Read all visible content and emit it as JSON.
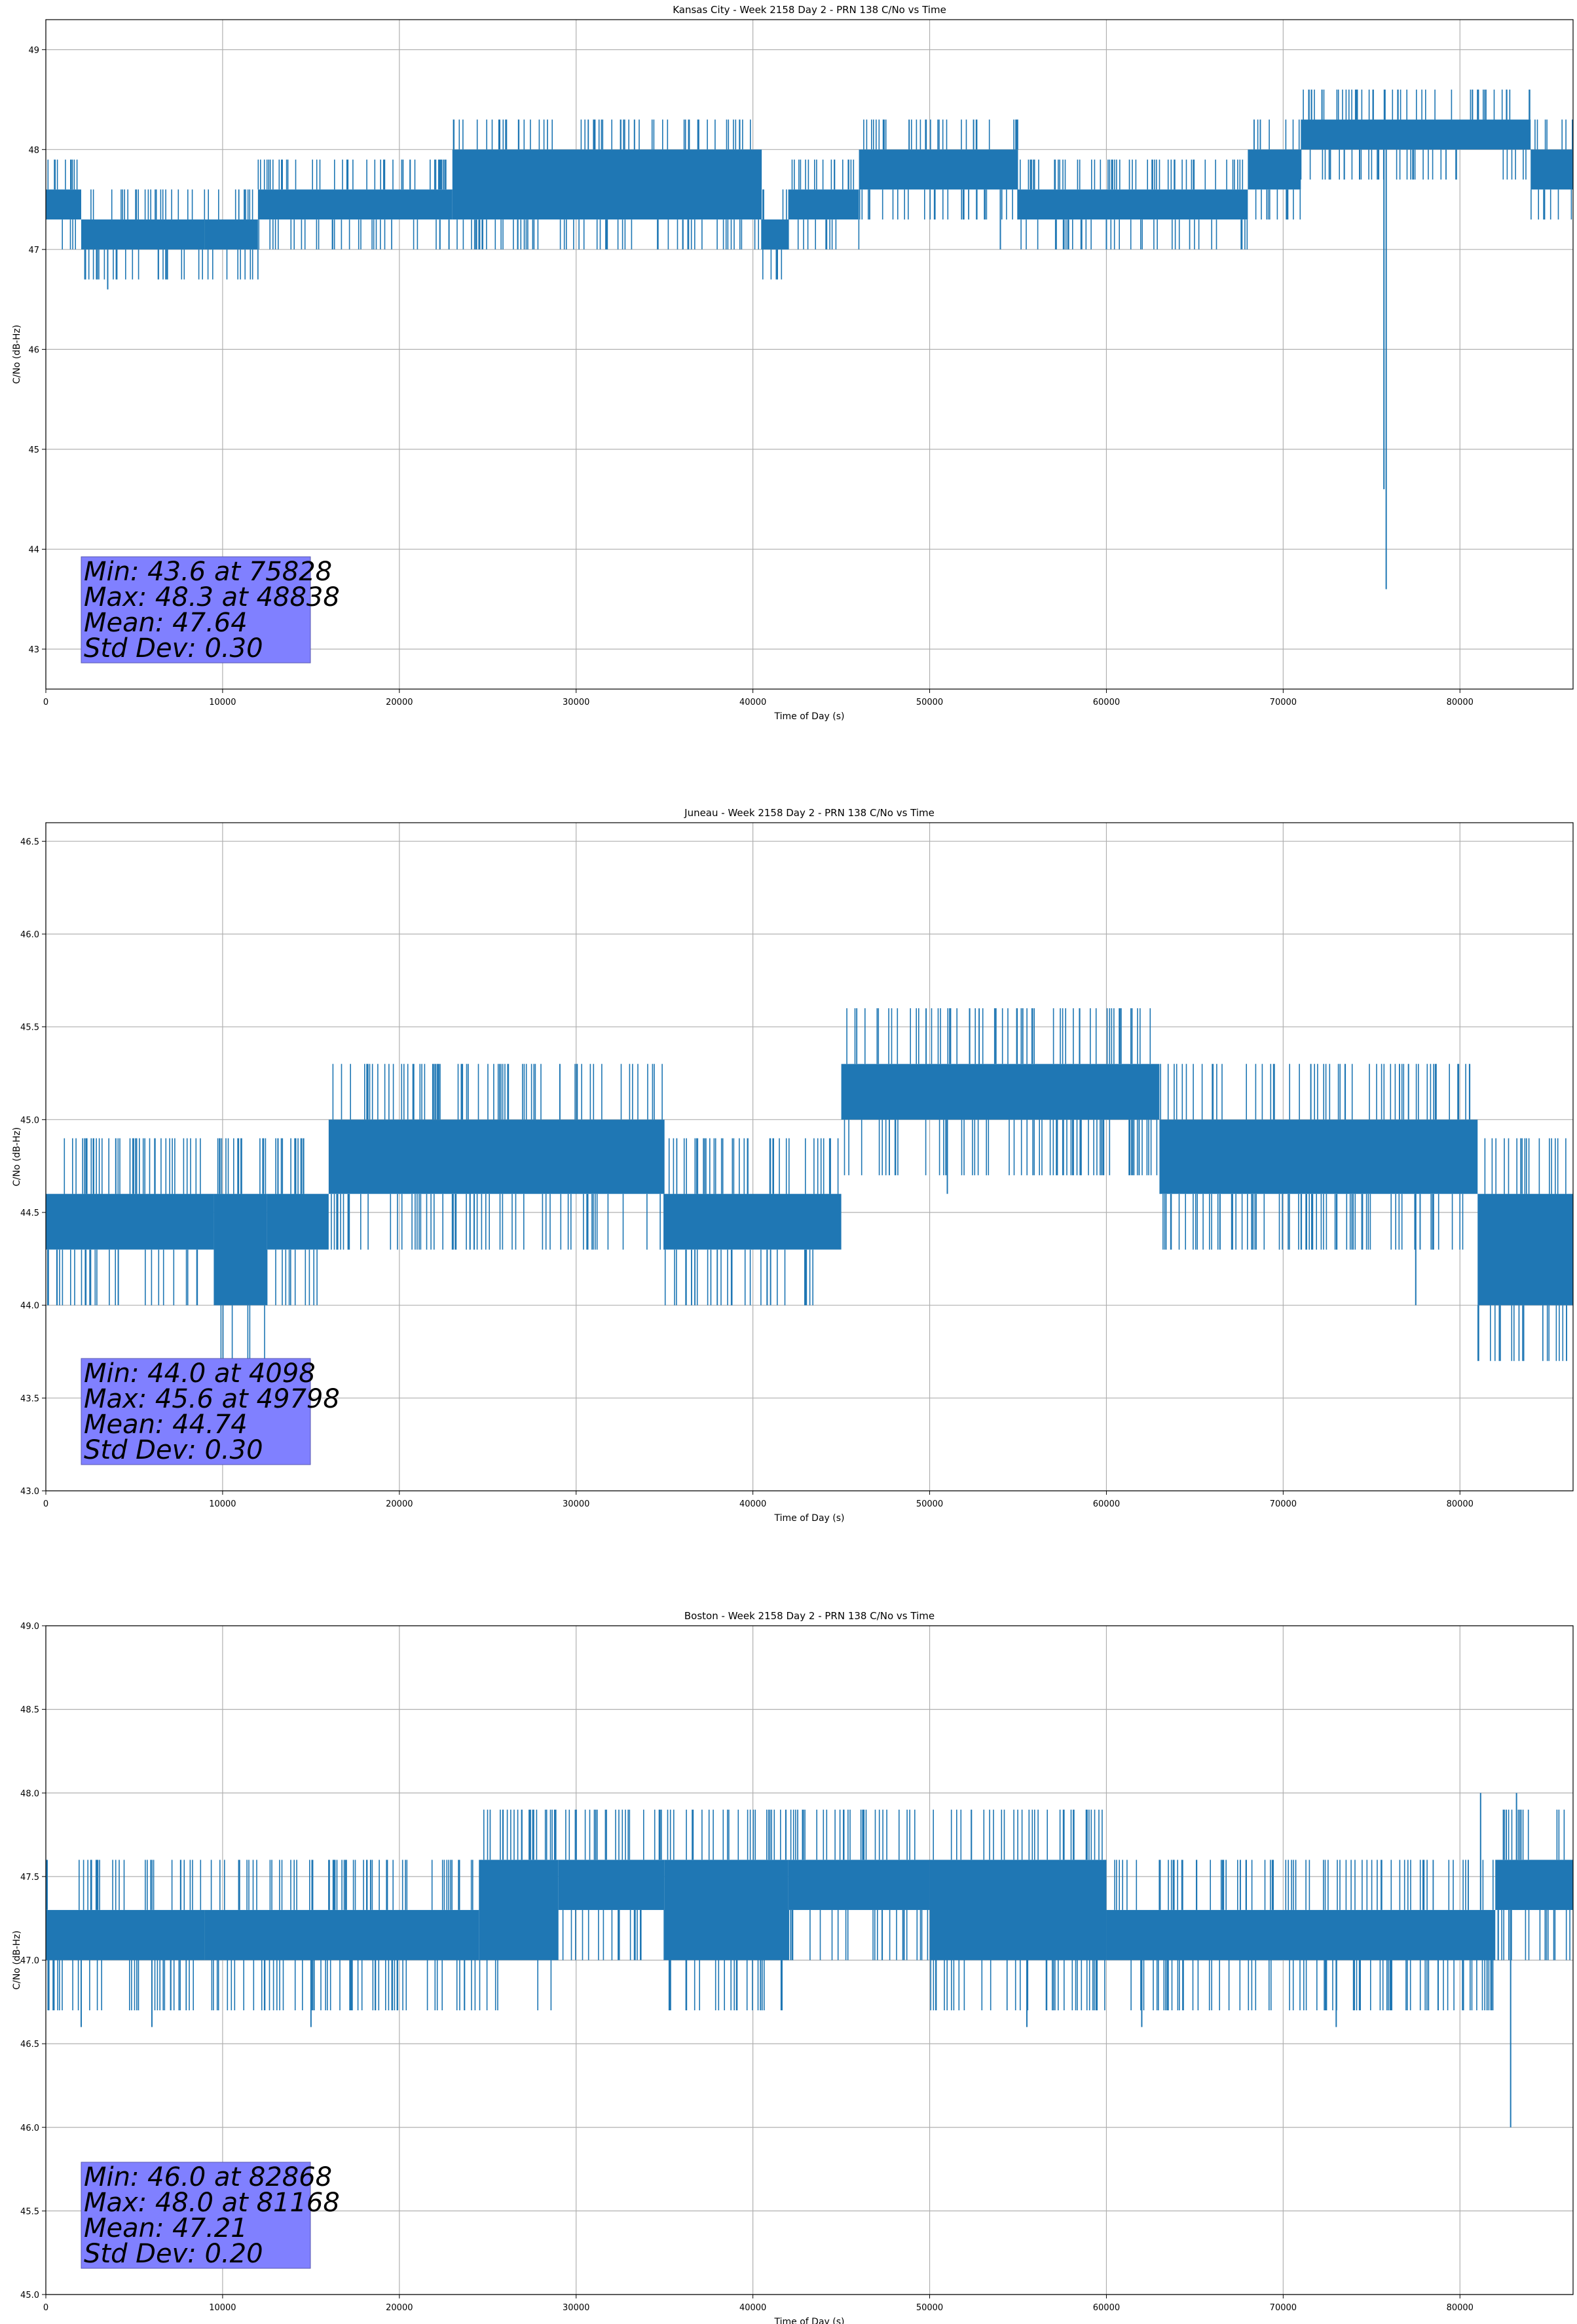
{
  "colors": {
    "series": "#1f77b4",
    "stats_box": "#8080ff",
    "grid": "#b0b0b0"
  },
  "chart_data": [
    {
      "type": "line",
      "title": "Kansas City - Week 2158 Day 2 - PRN 138 C/No vs Time",
      "xlabel": "Time of Day (s)",
      "ylabel": "C/No (dB-Hz)",
      "xlim": [
        0,
        86400
      ],
      "ylim": [
        42.6,
        49.3
      ],
      "xticks": [
        0,
        10000,
        20000,
        30000,
        40000,
        50000,
        60000,
        70000,
        80000
      ],
      "yticks": [
        43,
        44,
        45,
        46,
        47,
        48,
        49
      ],
      "ytick_labels": [
        "43",
        "44",
        "45",
        "46",
        "47",
        "48",
        "49"
      ],
      "grid": true,
      "stats_box": {
        "position": "bottom-left",
        "lines": [
          "Min: 43.6 at 75828",
          "Max: 48.3 at 48838",
          "Mean: 47.64",
          "Std Dev: 0.30"
        ]
      },
      "band_segments": [
        [
          0,
          2000,
          47.3,
          47.6
        ],
        [
          2000,
          9000,
          47.0,
          47.3
        ],
        [
          9000,
          12000,
          47.0,
          47.3
        ],
        [
          12000,
          23000,
          47.3,
          47.6
        ],
        [
          23000,
          40500,
          47.3,
          48.0
        ],
        [
          40500,
          42000,
          47.0,
          47.3
        ],
        [
          42000,
          46000,
          47.3,
          47.6
        ],
        [
          46000,
          55000,
          47.6,
          48.0
        ],
        [
          55000,
          68000,
          47.3,
          47.6
        ],
        [
          68000,
          71000,
          47.6,
          48.0
        ],
        [
          71000,
          84000,
          48.0,
          48.3
        ],
        [
          84000,
          86400,
          47.6,
          48.0
        ]
      ],
      "excursions": [
        [
          3500,
          46.6
        ],
        [
          41000,
          47.0
        ],
        [
          54000,
          47.0
        ],
        [
          60000,
          47.0
        ],
        [
          75700,
          44.6
        ],
        [
          75828,
          43.6
        ],
        [
          48838,
          48.3
        ]
      ]
    },
    {
      "type": "line",
      "title": "Juneau - Week 2158 Day 2 - PRN 138 C/No vs Time",
      "xlabel": "Time of Day (s)",
      "ylabel": "C/No (dB-Hz)",
      "xlim": [
        0,
        86400
      ],
      "ylim": [
        43.0,
        46.6
      ],
      "xticks": [
        0,
        10000,
        20000,
        30000,
        40000,
        50000,
        60000,
        70000,
        80000
      ],
      "yticks": [
        43.0,
        43.5,
        44.0,
        44.5,
        45.0,
        45.5,
        46.0,
        46.5
      ],
      "ytick_labels": [
        "43.0",
        "43.5",
        "44.0",
        "44.5",
        "45.0",
        "45.5",
        "46.0",
        "46.5"
      ],
      "grid": true,
      "stats_box": {
        "position": "bottom-left",
        "lines": [
          "Min: 44.0 at 4098",
          "Max: 45.6 at 49798",
          "Mean: 44.74",
          "Std Dev: 0.30"
        ]
      },
      "band_segments": [
        [
          0,
          9500,
          44.3,
          44.6
        ],
        [
          9500,
          12500,
          44.0,
          44.6
        ],
        [
          12500,
          16000,
          44.3,
          44.6
        ],
        [
          16000,
          35000,
          44.6,
          45.0
        ],
        [
          35000,
          45000,
          44.3,
          44.6
        ],
        [
          45000,
          63000,
          45.0,
          45.3
        ],
        [
          63000,
          81000,
          44.6,
          45.0
        ],
        [
          81000,
          86400,
          44.0,
          44.6
        ]
      ],
      "excursions": [
        [
          4098,
          44.0
        ],
        [
          24000,
          44.3
        ],
        [
          49798,
          45.6
        ],
        [
          52800,
          45.6
        ],
        [
          51000,
          44.6
        ],
        [
          77500,
          44.0
        ],
        [
          41000,
          44.0
        ]
      ]
    },
    {
      "type": "line",
      "title": "Boston - Week 2158 Day 2 - PRN 138 C/No vs Time",
      "xlabel": "Time of Day (s)",
      "ylabel": "C/No (dB-Hz)",
      "xlim": [
        0,
        86400
      ],
      "ylim": [
        45.0,
        49.0
      ],
      "xticks": [
        0,
        10000,
        20000,
        30000,
        40000,
        50000,
        60000,
        70000,
        80000
      ],
      "yticks": [
        45.0,
        45.5,
        46.0,
        46.5,
        47.0,
        47.5,
        48.0,
        48.5,
        49.0
      ],
      "ytick_labels": [
        "45.0",
        "45.5",
        "46.0",
        "46.5",
        "47.0",
        "47.5",
        "48.0",
        "48.5",
        "49.0"
      ],
      "grid": true,
      "stats_box": {
        "position": "bottom-left",
        "lines": [
          "Min: 46.0 at 82868",
          "Max: 48.0 at 81168",
          "Mean: 47.21",
          "Std Dev: 0.20"
        ]
      },
      "band_segments": [
        [
          0,
          9000,
          47.0,
          47.3
        ],
        [
          9000,
          24500,
          47.0,
          47.3
        ],
        [
          24500,
          29000,
          47.0,
          47.6
        ],
        [
          29000,
          35000,
          47.3,
          47.6
        ],
        [
          35000,
          42000,
          47.0,
          47.6
        ],
        [
          42000,
          50000,
          47.3,
          47.6
        ],
        [
          50000,
          60000,
          47.0,
          47.6
        ],
        [
          60000,
          82000,
          47.0,
          47.3
        ],
        [
          82000,
          86400,
          47.3,
          47.6
        ]
      ],
      "excursions": [
        [
          2000,
          46.6
        ],
        [
          6000,
          46.6
        ],
        [
          15000,
          46.6
        ],
        [
          16300,
          47.6
        ],
        [
          55500,
          46.6
        ],
        [
          62000,
          46.6
        ],
        [
          81168,
          48.0
        ],
        [
          82868,
          46.0
        ],
        [
          83200,
          48.0
        ],
        [
          73000,
          46.6
        ]
      ]
    }
  ]
}
